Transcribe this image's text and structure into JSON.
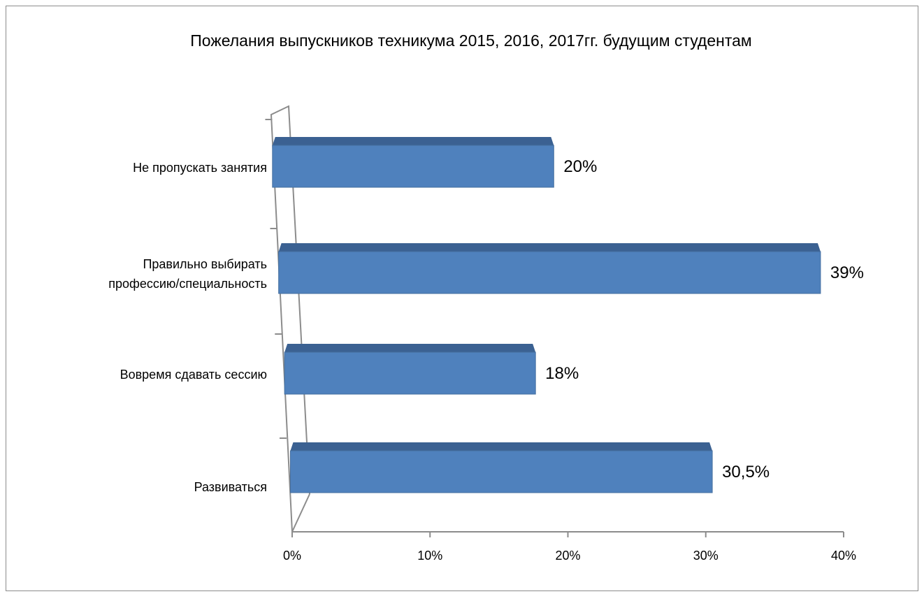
{
  "chart_data": {
    "type": "bar",
    "orientation": "horizontal",
    "title": "Пожелания выпускников техникума 2015, 2016, 2017гг. будущим студентам",
    "xlabel": "",
    "ylabel": "",
    "categories": [
      [
        "Не пропускать занятия"
      ],
      [
        "Правильно выбирать",
        "профессию/специальность"
      ],
      [
        "Вовремя сдавать сессию"
      ],
      [
        "Развиваться"
      ]
    ],
    "values": [
      0.2,
      0.39,
      0.18,
      0.305
    ],
    "data_labels": [
      "20%",
      "39%",
      "18%",
      "30,5%"
    ],
    "xlim": [
      0,
      0.4
    ],
    "x_ticks": [
      0,
      0.1,
      0.2,
      0.3,
      0.4
    ],
    "x_tick_labels": [
      "0%",
      "10%",
      "20%",
      "30%",
      "40%"
    ],
    "grid": false,
    "legend": "none",
    "style": "3d",
    "colors": {
      "bar_front": "#4f81bd",
      "bar_top": "#3b6192",
      "axis": "#8c8c8c"
    }
  }
}
